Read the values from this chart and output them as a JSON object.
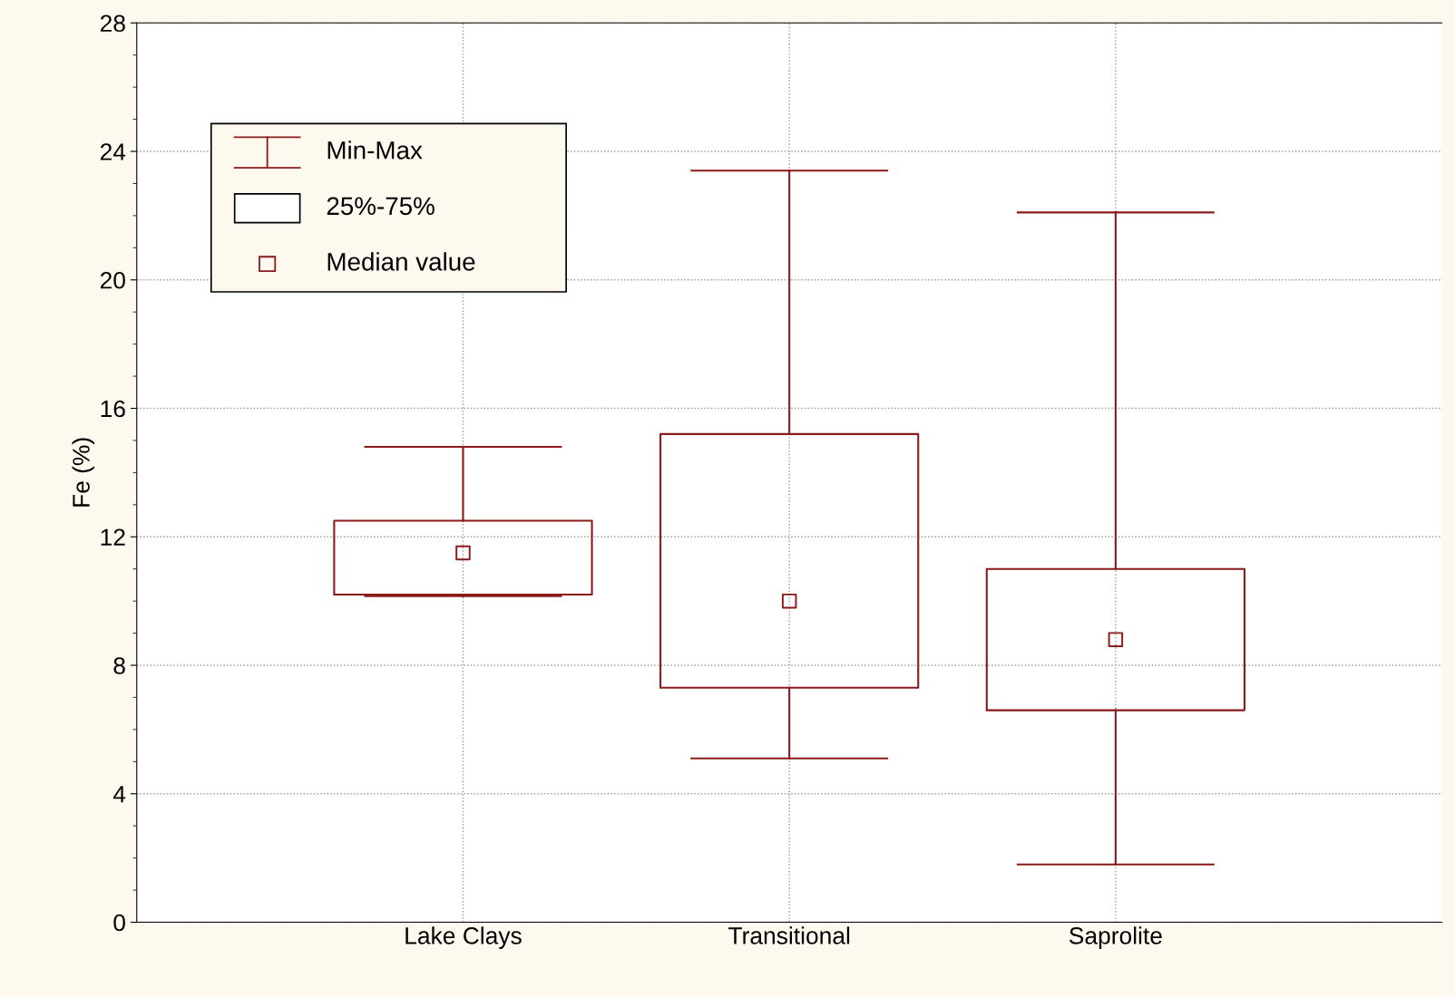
{
  "chart_data": {
    "type": "box",
    "ylabel": "Fe (%)",
    "categories": [
      "Lake Clays",
      "Transitional",
      "Saprolite"
    ],
    "boxes": [
      {
        "low": 10.15,
        "q1": 10.2,
        "median": 11.5,
        "q3": 12.5,
        "high": 14.8
      },
      {
        "low": 5.1,
        "q1": 7.3,
        "median": 10.0,
        "q3": 15.2,
        "high": 23.4
      },
      {
        "low": 1.8,
        "q1": 6.6,
        "median": 8.8,
        "q3": 11.0,
        "high": 22.1
      }
    ],
    "color": "#8b1a1a",
    "ylim": [
      0,
      28
    ],
    "yticks": [
      0,
      4,
      8,
      12,
      16,
      20,
      24,
      28
    ],
    "grid": true,
    "annotations": [
      "Min-Max",
      "25%-75%",
      "Median value"
    ]
  }
}
